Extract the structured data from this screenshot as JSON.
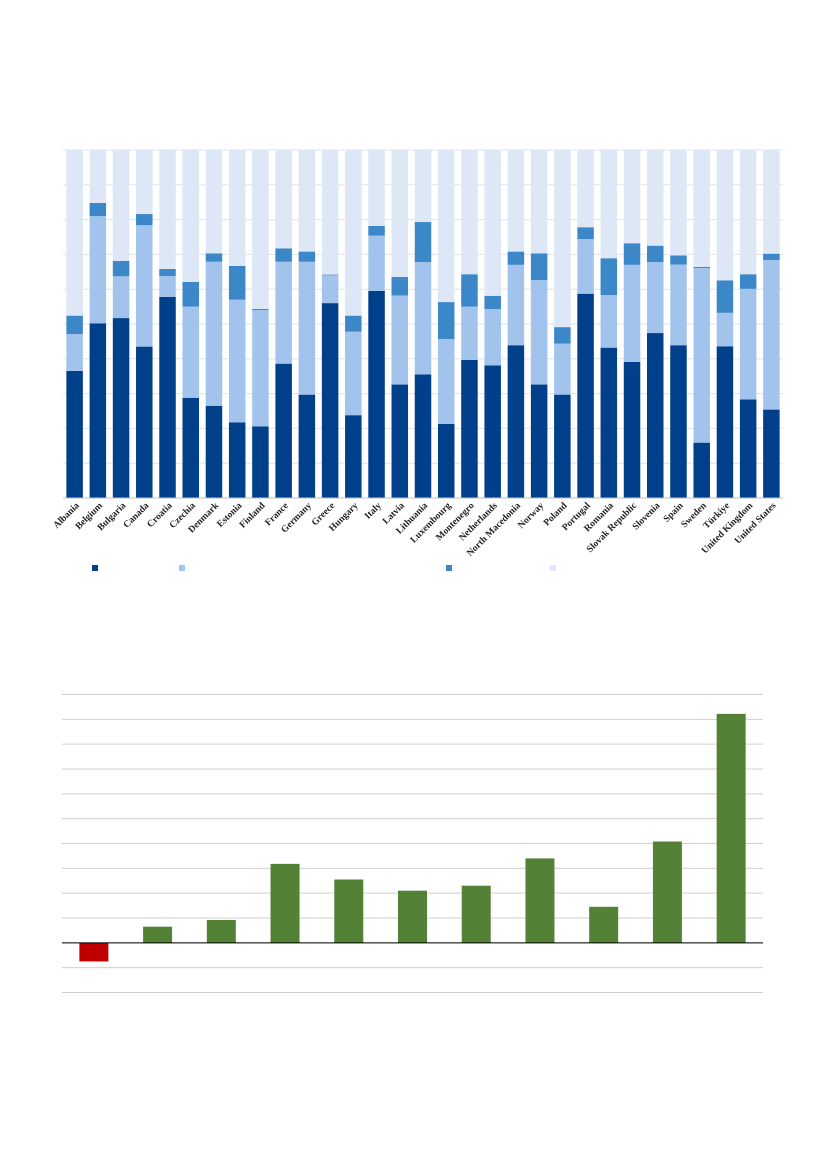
{
  "chart_data": [
    {
      "type": "bar",
      "stacked": true,
      "normalized": true,
      "title": "",
      "xlabel": "",
      "ylabel": "",
      "ylim": [
        0,
        100
      ],
      "grid": true,
      "legend": "bottom",
      "categories": [
        "Albania",
        "Belgium",
        "Bulgaria",
        "Canada",
        "Croatia",
        "Czechia",
        "Denmark",
        "Estonia",
        "Finland",
        "France",
        "Germany",
        "Greece",
        "Hungary",
        "Italy",
        "Latvia",
        "Lithuania",
        "Luxembourg",
        "Montenegro",
        "Netherlands",
        "North Macedonia",
        "Norway",
        "Poland",
        "Portugal",
        "Romania",
        "Slovak Republic",
        "Slovenia",
        "Spain",
        "Sweden",
        "Türkiye",
        "United Kingdom",
        "United States"
      ],
      "series": [
        {
          "color": "#003F8A",
          "values": [
            36.5,
            50.2,
            51.7,
            43.5,
            57.8,
            28.8,
            26.5,
            21.7,
            20.6,
            38.6,
            29.7,
            56.0,
            23.8,
            59.5,
            32.6,
            35.5,
            21.3,
            39.7,
            38.1,
            43.9,
            32.6,
            29.7,
            58.7,
            43.2,
            39.1,
            47.4,
            43.9,
            15.9,
            43.6,
            28.3,
            25.4
          ]
        },
        {
          "color": "#A2C4EC",
          "values": [
            10.6,
            30.8,
            12.0,
            34.9,
            6.0,
            26.2,
            41.4,
            35.3,
            33.4,
            29.3,
            38.2,
            8.0,
            24.0,
            15.9,
            25.6,
            32.3,
            24.4,
            15.3,
            16.2,
            23.1,
            30.0,
            14.7,
            15.7,
            15.1,
            27.9,
            20.4,
            23.2,
            50.2,
            9.6,
            31.8,
            43.0
          ]
        },
        {
          "color": "#3B87C8",
          "values": [
            5.3,
            3.8,
            4.4,
            3.2,
            2.0,
            7.1,
            2.4,
            9.7,
            0.3,
            3.8,
            2.9,
            0.2,
            4.6,
            2.8,
            5.3,
            11.5,
            10.6,
            9.3,
            3.8,
            3.8,
            7.7,
            4.7,
            3.4,
            10.6,
            6.2,
            4.7,
            2.6,
            0.3,
            9.3,
            4.2,
            1.8
          ]
        },
        {
          "color": "#DDE7F6",
          "values": [
            47.6,
            15.2,
            31.9,
            18.4,
            34.2,
            37.9,
            29.7,
            33.3,
            45.7,
            28.3,
            29.2,
            35.8,
            47.6,
            21.8,
            36.5,
            20.7,
            43.7,
            35.7,
            41.9,
            29.2,
            29.7,
            50.9,
            22.2,
            31.1,
            26.8,
            27.5,
            30.3,
            33.6,
            37.5,
            35.7,
            29.8
          ]
        }
      ]
    },
    {
      "type": "bar",
      "title": "",
      "xlabel": "",
      "ylabel": "",
      "ylim": [
        -2,
        10
      ],
      "grid": true,
      "categories": [
        "",
        "",
        "",
        "",
        "",
        "",
        "",
        "",
        "",
        "",
        ""
      ],
      "values": [
        -0.75,
        0.65,
        0.92,
        3.18,
        2.55,
        2.1,
        2.3,
        3.4,
        1.45,
        4.08,
        9.22
      ],
      "colors": {
        "positive": "#538135",
        "negative": "#C00000"
      }
    }
  ]
}
